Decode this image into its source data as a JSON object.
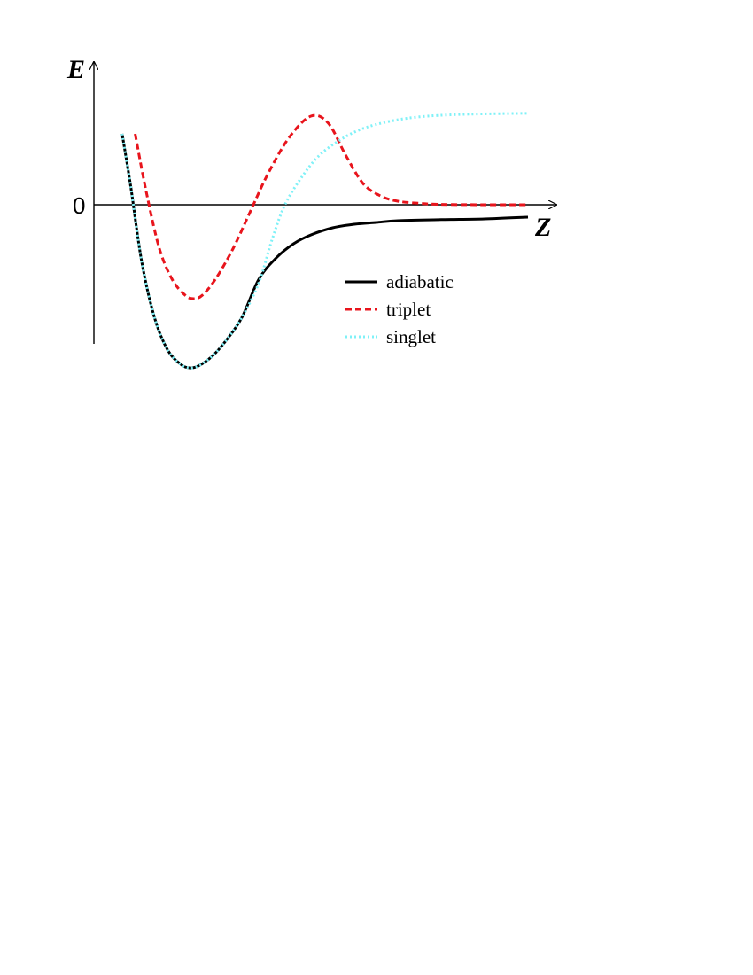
{
  "chart_data": {
    "type": "line",
    "xlabel": "Z",
    "ylabel": "E",
    "y_tick_labels": [
      {
        "value": 0,
        "label": "0"
      }
    ],
    "xlim": [
      0,
      10
    ],
    "ylim": [
      -5,
      3
    ],
    "grid": false,
    "legend_position": "lower-right",
    "series": [
      {
        "name": "triplet",
        "style": "dashed",
        "color": "#e8141c",
        "x": [
          0.95,
          1.2,
          1.5,
          1.8,
          2.1,
          2.3,
          2.5,
          2.8,
          3.2,
          3.6,
          4.0,
          4.5,
          5.0,
          5.4,
          5.8,
          6.2,
          6.6,
          7.0,
          7.5,
          8.0,
          9.0,
          10.0
        ],
        "y": [
          2.0,
          0.4,
          -1.2,
          -2.1,
          -2.55,
          -2.65,
          -2.55,
          -2.1,
          -1.25,
          -0.2,
          0.85,
          1.9,
          2.5,
          2.3,
          1.4,
          0.6,
          0.25,
          0.1,
          0.04,
          0.01,
          0.0,
          0.0
        ]
      },
      {
        "name": "singlet",
        "style": "dotted",
        "color": "#7ff1f7",
        "x": [
          0.65,
          0.85,
          1.1,
          1.4,
          1.7,
          2.0,
          2.2,
          2.4,
          2.7,
          3.0,
          3.4,
          3.8,
          4.1,
          4.4,
          4.8,
          5.2,
          5.7,
          6.2,
          6.8,
          7.5,
          8.5,
          10.0
        ],
        "y": [
          2.0,
          0.5,
          -1.6,
          -3.2,
          -4.1,
          -4.5,
          -4.6,
          -4.55,
          -4.3,
          -3.9,
          -3.2,
          -2.2,
          -1.0,
          0.0,
          0.8,
          1.4,
          1.85,
          2.15,
          2.35,
          2.48,
          2.55,
          2.58
        ]
      },
      {
        "name": "adiabatic",
        "style": "solid",
        "color": "#000000",
        "x": [
          0.65,
          0.85,
          1.1,
          1.4,
          1.7,
          2.0,
          2.2,
          2.4,
          2.7,
          3.0,
          3.4,
          3.8,
          4.2,
          4.6,
          5.0,
          5.5,
          6.0,
          6.5,
          7.0,
          8.0,
          9.0,
          10.0
        ],
        "y": [
          2.0,
          0.5,
          -1.6,
          -3.2,
          -4.1,
          -4.5,
          -4.6,
          -4.55,
          -4.3,
          -3.9,
          -3.2,
          -2.1,
          -1.5,
          -1.1,
          -0.85,
          -0.65,
          -0.55,
          -0.5,
          -0.45,
          -0.42,
          -0.4,
          -0.35
        ]
      }
    ]
  }
}
